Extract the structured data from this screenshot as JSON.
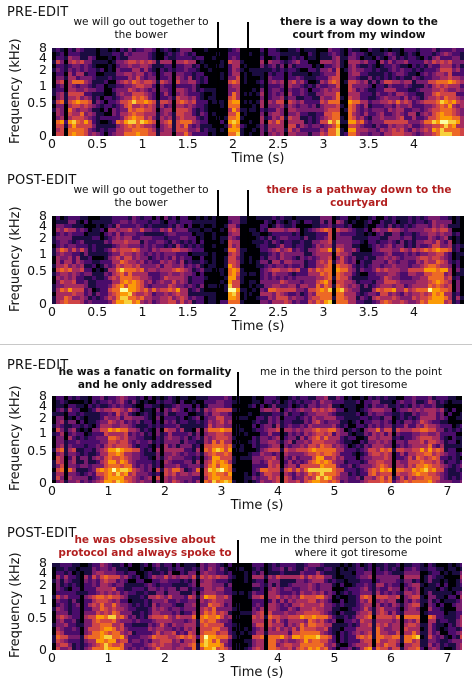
{
  "figure": {
    "panels": [
      {
        "title": "PRE-EDIT",
        "left_text": "we will go out together to the bower",
        "right_text": "there is a way down to the court from my window",
        "left_style": "normal",
        "right_style": "bold",
        "duration": 4.35,
        "boundaries": [
          1.83,
          2.17
        ]
      },
      {
        "title": "POST-EDIT",
        "left_text": "we will go out together to the bower",
        "right_text": "there is a pathway down to the courtyard",
        "left_style": "normal",
        "right_style": "bold-red",
        "duration": 4.35,
        "boundaries": [
          1.83,
          2.17
        ]
      },
      {
        "title": "PRE-EDIT",
        "left_text": "he was a fanatic on formality and he only addressed",
        "right_text": "me in the third person to the point where it got tiresome",
        "left_style": "bold",
        "right_style": "normal",
        "duration": 7.2,
        "boundaries": [
          3.3
        ]
      },
      {
        "title": "POST-EDIT",
        "left_text": "he was obsessive about protocol and always spoke to",
        "right_text": "me in the third person to the point where it got tiresome",
        "left_style": "bold-red",
        "right_style": "normal",
        "duration": 7.2,
        "boundaries": [
          3.3
        ]
      }
    ],
    "y_label": "Frequency (kHz)",
    "x_label": "Time (s)",
    "y_ticks": [
      "8",
      "4",
      "2",
      "1",
      "0.5",
      "0"
    ],
    "x_ticks_short": [
      "0",
      "0.5",
      "1",
      "1.5",
      "2",
      "2.5",
      "3",
      "3.5",
      "4"
    ],
    "x_ticks_long": [
      "0",
      "1",
      "2",
      "3",
      "4",
      "5",
      "6",
      "7"
    ]
  }
}
